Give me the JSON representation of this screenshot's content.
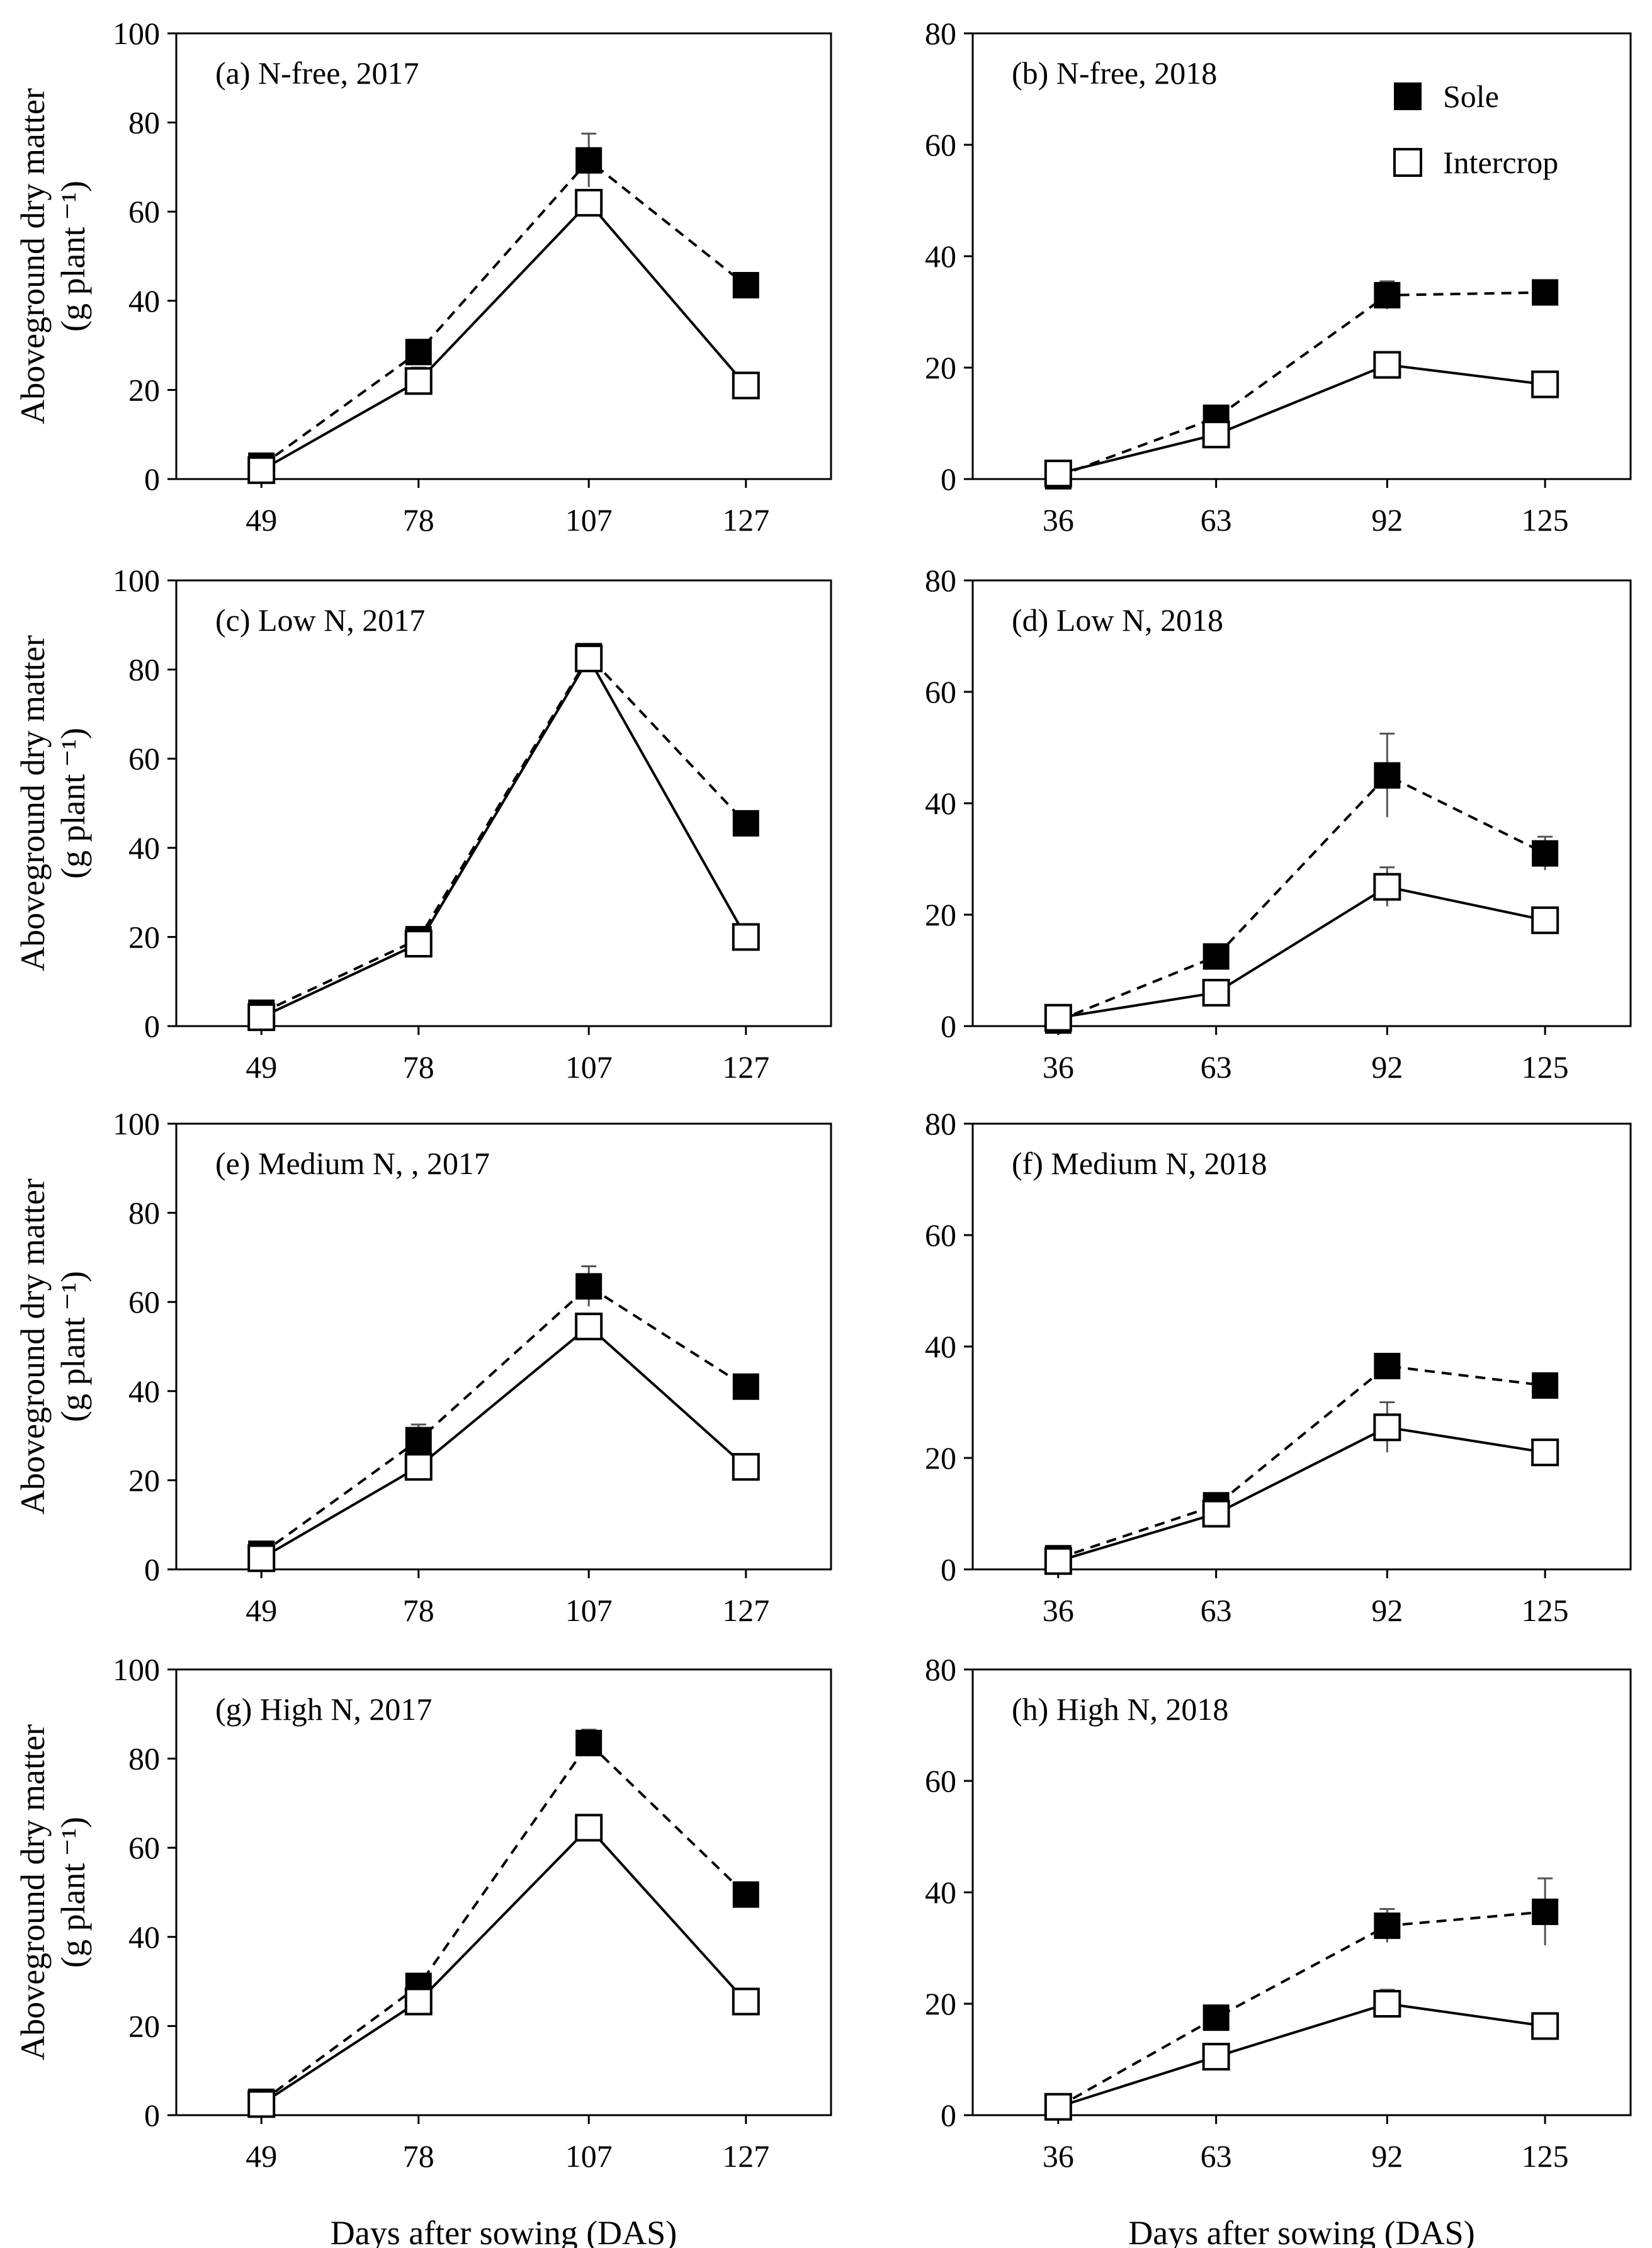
{
  "figure": {
    "ylabel_line1": "Aboveground dry matter",
    "ylabel_line2": "(g plant ⁻¹)",
    "xlabel": "Days after sowing (DAS)"
  },
  "legend": {
    "sole": "Sole",
    "intercrop": "Intercrop"
  },
  "chart_data": [
    {
      "type": "line",
      "title": "(a) N-free, 2017",
      "categories": [
        "49",
        "78",
        "107",
        "127"
      ],
      "ylim": [
        0,
        100
      ],
      "yticks": [
        0,
        20,
        40,
        60,
        80,
        100
      ],
      "xlabel": "",
      "series": [
        {
          "name": "Sole",
          "values": [
            3,
            28.5,
            71.5,
            43.5
          ],
          "errors": [
            0,
            2,
            6,
            0
          ]
        },
        {
          "name": "Intercrop",
          "values": [
            2,
            22,
            62,
            21
          ],
          "errors": [
            0,
            3,
            0,
            0
          ]
        }
      ]
    },
    {
      "type": "line",
      "title": "(b) N-free, 2018",
      "categories": [
        "36",
        "63",
        "92",
        "125"
      ],
      "ylim": [
        0,
        80
      ],
      "yticks": [
        0,
        20,
        40,
        60,
        80
      ],
      "xlabel": "",
      "series": [
        {
          "name": "Sole",
          "values": [
            0.5,
            11,
            33,
            33.5
          ],
          "errors": [
            0,
            0,
            2.5,
            0
          ]
        },
        {
          "name": "Intercrop",
          "values": [
            1,
            8,
            20.5,
            17
          ],
          "errors": [
            0,
            0,
            0,
            0
          ]
        }
      ]
    },
    {
      "type": "line",
      "title": "(c) Low N, 2017",
      "categories": [
        "49",
        "78",
        "107",
        "127"
      ],
      "ylim": [
        0,
        100
      ],
      "yticks": [
        0,
        20,
        40,
        60,
        80,
        100
      ],
      "xlabel": "",
      "series": [
        {
          "name": "Sole",
          "values": [
            3,
            19.5,
            83,
            45.5
          ],
          "errors": [
            0,
            0,
            0,
            0
          ]
        },
        {
          "name": "Intercrop",
          "values": [
            2,
            18.5,
            82.5,
            20
          ],
          "errors": [
            0,
            0,
            0,
            0
          ]
        }
      ]
    },
    {
      "type": "line",
      "title": "(d) Low N,  2018",
      "categories": [
        "36",
        "63",
        "92",
        "125"
      ],
      "ylim": [
        0,
        80
      ],
      "yticks": [
        0,
        20,
        40,
        60,
        80
      ],
      "xlabel": "",
      "series": [
        {
          "name": "Sole",
          "values": [
            1,
            12.5,
            45,
            31
          ],
          "errors": [
            0,
            0,
            7.5,
            3
          ]
        },
        {
          "name": "Intercrop",
          "values": [
            1.5,
            6,
            25,
            19
          ],
          "errors": [
            0,
            0,
            3.5,
            0
          ]
        }
      ]
    },
    {
      "type": "line",
      "title": "(e) Medium N, , 2017",
      "categories": [
        "49",
        "78",
        "107",
        "127"
      ],
      "ylim": [
        0,
        100
      ],
      "yticks": [
        0,
        20,
        40,
        60,
        80,
        100
      ],
      "xlabel": "",
      "series": [
        {
          "name": "Sole",
          "values": [
            3.5,
            29,
            63.5,
            41
          ],
          "errors": [
            0,
            3.5,
            4.5,
            0
          ]
        },
        {
          "name": "Intercrop",
          "values": [
            2.5,
            23,
            54.5,
            23
          ],
          "errors": [
            0,
            0,
            0,
            0
          ]
        }
      ]
    },
    {
      "type": "line",
      "title": "(f) Medium N, 2018",
      "categories": [
        "36",
        "63",
        "92",
        "125"
      ],
      "ylim": [
        0,
        80
      ],
      "yticks": [
        0,
        20,
        40,
        60,
        80
      ],
      "xlabel": "",
      "series": [
        {
          "name": "Sole",
          "values": [
            2,
            11.5,
            36.5,
            33
          ],
          "errors": [
            0,
            0,
            0,
            0
          ]
        },
        {
          "name": "Intercrop",
          "values": [
            1.5,
            10,
            25.5,
            21
          ],
          "errors": [
            0,
            0,
            4.5,
            0
          ]
        }
      ]
    },
    {
      "type": "line",
      "title": "(g) High N, 2017",
      "categories": [
        "49",
        "78",
        "107",
        "127"
      ],
      "ylim": [
        0,
        100
      ],
      "yticks": [
        0,
        20,
        40,
        60,
        80,
        100
      ],
      "xlabel": "Days after sowing (DAS)",
      "series": [
        {
          "name": "Sole",
          "values": [
            3,
            29,
            83.5,
            49.5
          ],
          "errors": [
            0,
            0,
            3,
            0
          ]
        },
        {
          "name": "Intercrop",
          "values": [
            2.5,
            25.5,
            64.5,
            25.5
          ],
          "errors": [
            0,
            0,
            0,
            0
          ]
        }
      ]
    },
    {
      "type": "line",
      "title": "(h) High N, 2018",
      "categories": [
        "36",
        "63",
        "92",
        "125"
      ],
      "ylim": [
        0,
        80
      ],
      "yticks": [
        0,
        20,
        40,
        60,
        80
      ],
      "xlabel": "Days after sowing (DAS)",
      "series": [
        {
          "name": "Sole",
          "values": [
            1.5,
            17.5,
            34,
            36.5
          ],
          "errors": [
            0,
            0,
            3,
            6
          ]
        },
        {
          "name": "Intercrop",
          "values": [
            1.5,
            10.5,
            20,
            16
          ],
          "errors": [
            0,
            0,
            2.5,
            0
          ]
        }
      ]
    }
  ]
}
